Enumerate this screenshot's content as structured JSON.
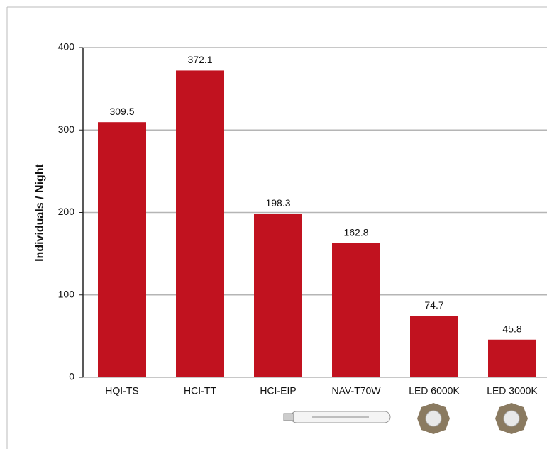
{
  "chart_data": {
    "type": "bar",
    "ylabel": "Individuals / Night",
    "categories": [
      "HQI-TS",
      "HCI-TT",
      "HCI-EIP",
      "NAV-T70W",
      "LED 6000K",
      "LED 3000K"
    ],
    "values": [
      309.5,
      372.1,
      198.3,
      162.8,
      74.7,
      45.8
    ],
    "color": "#c1121f",
    "ylim": [
      0,
      400
    ],
    "yticks": [
      0,
      100,
      200,
      300,
      400
    ],
    "grid": true
  }
}
